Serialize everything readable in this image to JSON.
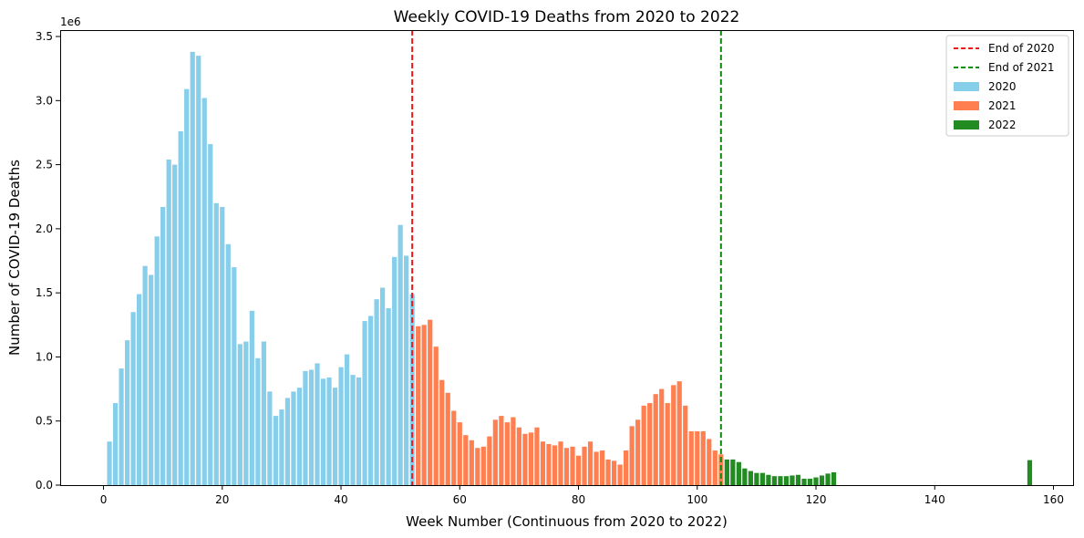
{
  "chart_data": {
    "type": "bar",
    "title": "Weekly COVID-19 Deaths from 2020 to 2022",
    "xlabel": "Week Number (Continuous from 2020 to 2022)",
    "ylabel": "Number of COVID-19 Deaths",
    "y_offset_label": "1e6",
    "xlim": [
      -7.3,
      163.3
    ],
    "ylim": [
      0,
      3550000
    ],
    "x_ticks": [
      0,
      20,
      40,
      60,
      80,
      100,
      120,
      140,
      160
    ],
    "x_tick_labels": [
      "0",
      "20",
      "40",
      "60",
      "80",
      "100",
      "120",
      "140",
      "160"
    ],
    "y_ticks": [
      0,
      500000,
      1000000,
      1500000,
      2000000,
      2500000,
      3000000,
      3500000
    ],
    "y_tick_labels": [
      "0.0",
      "0.5",
      "1.0",
      "1.5",
      "2.0",
      "2.5",
      "3.0",
      "3.5"
    ],
    "grid": false,
    "legend_position": "top-right",
    "legend": [
      {
        "label": "End of 2020",
        "kind": "dashed-line",
        "color": "#e41a1c"
      },
      {
        "label": "End of 2021",
        "kind": "dashed-line",
        "color": "#0b8a0b"
      },
      {
        "label": "2020",
        "kind": "bar",
        "color": "#87ceeb"
      },
      {
        "label": "2021",
        "kind": "bar",
        "color": "#ff7f50"
      },
      {
        "label": "2022",
        "kind": "bar",
        "color": "#228b22"
      }
    ],
    "vlines": [
      {
        "x": 52,
        "color": "#e41a1c",
        "label": "End of 2020"
      },
      {
        "x": 104,
        "color": "#0b8a0b",
        "label": "End of 2021"
      }
    ],
    "series": [
      {
        "name": "2020",
        "color": "#87ceeb",
        "x": [
          1,
          2,
          3,
          4,
          5,
          6,
          7,
          8,
          9,
          10,
          11,
          12,
          13,
          14,
          15,
          16,
          17,
          18,
          19,
          20,
          21,
          22,
          23,
          24,
          25,
          26,
          27,
          28,
          29,
          30,
          31,
          32,
          33,
          34,
          35,
          36,
          37,
          38,
          39,
          40,
          41,
          42,
          43,
          44,
          45,
          46,
          47,
          48,
          49,
          50,
          51,
          52
        ],
        "values": [
          340000,
          640000,
          910000,
          1130000,
          1350000,
          1490000,
          1710000,
          1640000,
          1940000,
          2170000,
          2540000,
          2500000,
          2760000,
          3090000,
          3380000,
          3350000,
          3020000,
          2660000,
          2200000,
          2170000,
          1880000,
          1700000,
          1100000,
          1120000,
          1360000,
          990000,
          1120000,
          730000,
          540000,
          590000,
          680000,
          730000,
          760000,
          890000,
          900000,
          950000,
          830000,
          840000,
          760000,
          920000,
          1020000,
          860000,
          840000,
          1280000,
          1320000,
          1450000,
          1540000,
          1380000,
          1780000,
          2030000,
          1790000,
          1490000
        ]
      },
      {
        "name": "2021",
        "color": "#ff7f50",
        "x": [
          53,
          54,
          55,
          56,
          57,
          58,
          59,
          60,
          61,
          62,
          63,
          64,
          65,
          66,
          67,
          68,
          69,
          70,
          71,
          72,
          73,
          74,
          75,
          76,
          77,
          78,
          79,
          80,
          81,
          82,
          83,
          84,
          85,
          86,
          87,
          88,
          89,
          90,
          91,
          92,
          93,
          94,
          95,
          96,
          97,
          98,
          99,
          100,
          101,
          102,
          103,
          104
        ],
        "values": [
          1240000,
          1250000,
          1290000,
          1080000,
          820000,
          720000,
          580000,
          490000,
          390000,
          350000,
          290000,
          300000,
          380000,
          510000,
          540000,
          490000,
          530000,
          450000,
          400000,
          410000,
          450000,
          340000,
          320000,
          310000,
          340000,
          290000,
          300000,
          230000,
          300000,
          340000,
          260000,
          270000,
          200000,
          190000,
          160000,
          270000,
          460000,
          510000,
          620000,
          640000,
          710000,
          750000,
          640000,
          780000,
          810000,
          620000,
          420000,
          420000,
          420000,
          360000,
          270000,
          240000
        ]
      },
      {
        "name": "2022",
        "color": "#228b22",
        "x": [
          105,
          106,
          107,
          108,
          109,
          110,
          111,
          112,
          113,
          114,
          115,
          116,
          117,
          118,
          119,
          120,
          121,
          122,
          123,
          156
        ],
        "values": [
          200000,
          200000,
          180000,
          130000,
          110000,
          95000,
          95000,
          80000,
          70000,
          70000,
          70000,
          75000,
          80000,
          50000,
          50000,
          60000,
          75000,
          90000,
          100000,
          195000
        ]
      }
    ]
  }
}
